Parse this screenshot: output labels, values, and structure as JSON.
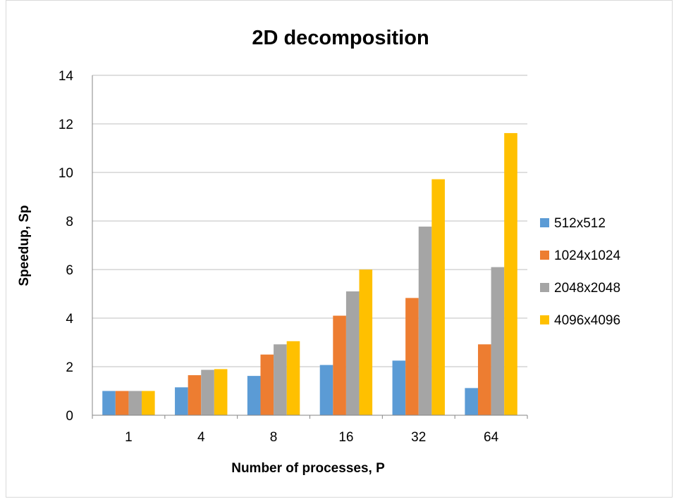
{
  "chart_data": {
    "type": "bar",
    "title": "2D decomposition",
    "xlabel": "Number of processes, P",
    "ylabel": "Speedup, Sp",
    "categories": [
      "1",
      "4",
      "8",
      "16",
      "32",
      "64"
    ],
    "ylim": [
      0,
      14
    ],
    "yticks": [
      0,
      2,
      4,
      6,
      8,
      10,
      12,
      14
    ],
    "grid": true,
    "legend_position": "right",
    "series": [
      {
        "name": "512x512",
        "color": "#5B9BD5",
        "values": [
          1.0,
          1.15,
          1.62,
          2.07,
          2.25,
          1.12
        ]
      },
      {
        "name": "1024x1024",
        "color": "#ED7D31",
        "values": [
          1.0,
          1.65,
          2.5,
          4.1,
          4.83,
          2.92
        ]
      },
      {
        "name": "2048x2048",
        "color": "#A5A5A5",
        "values": [
          1.0,
          1.87,
          2.92,
          5.1,
          7.77,
          6.1
        ]
      },
      {
        "name": "4096x4096",
        "color": "#FFC000",
        "values": [
          1.0,
          1.9,
          3.05,
          6.0,
          9.72,
          11.62
        ]
      }
    ]
  }
}
